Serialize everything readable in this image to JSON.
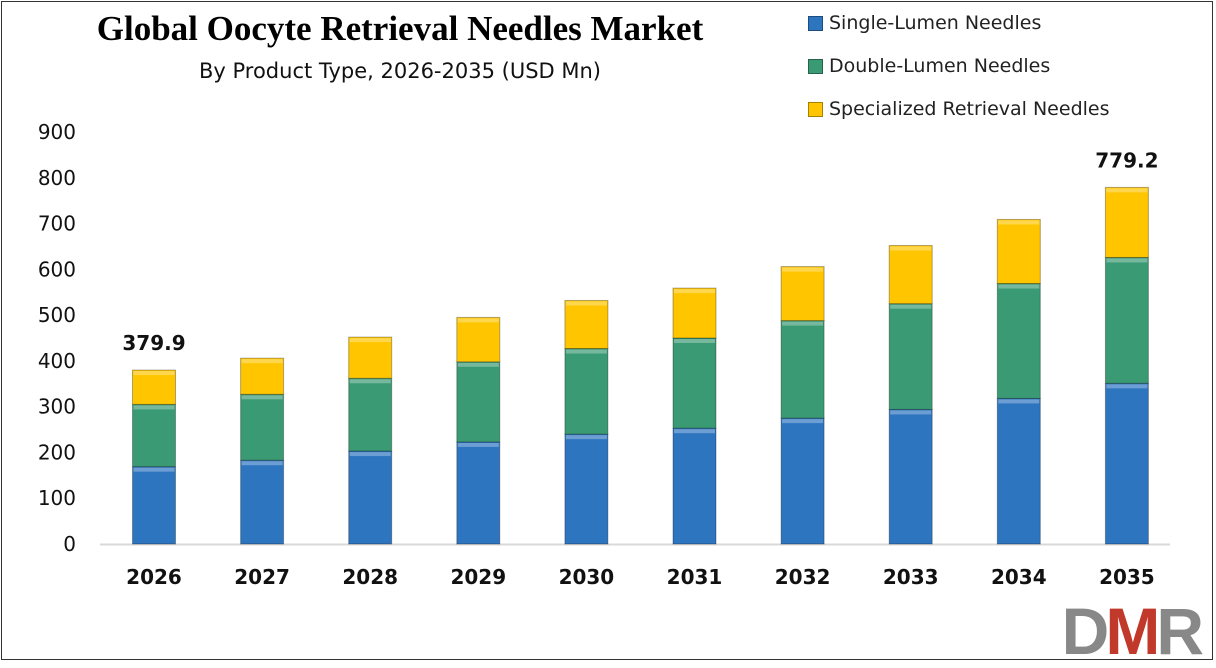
{
  "chart_data": {
    "type": "bar",
    "stacked": true,
    "title": "Global Oocyte Retrieval Needles Market",
    "subtitle": "By Product Type, 2026-2035 (USD Mn)",
    "categories": [
      "2026",
      "2027",
      "2028",
      "2029",
      "2030",
      "2031",
      "2032",
      "2033",
      "2034",
      "2035"
    ],
    "series": [
      {
        "name": "Single-Lumen Needles",
        "color": "#2e75c0",
        "values": [
          169,
          183,
          203,
          223,
          240,
          253,
          275,
          294,
          318,
          351
        ]
      },
      {
        "name": "Double-Lumen Needles",
        "color": "#3a9a74",
        "values": [
          136,
          144,
          159,
          175,
          187,
          197,
          213,
          231,
          251,
          275
        ]
      },
      {
        "name": "Specialized Retrieval Needles",
        "color": "#ffc600",
        "values": [
          75,
          79,
          90,
          97,
          105,
          109,
          118,
          127,
          140,
          153
        ]
      }
    ],
    "data_labels": [
      {
        "category": "2026",
        "text": "379.9"
      },
      {
        "category": "2035",
        "text": "779.2"
      }
    ],
    "yticks": [
      "0",
      "100",
      "200",
      "300",
      "400",
      "500",
      "600",
      "700",
      "800",
      "900"
    ],
    "ylim": [
      0,
      900
    ],
    "grid": false,
    "legend": "top-right"
  },
  "logo": {
    "text": "DMR",
    "colors": [
      "#888888",
      "#c0392b"
    ]
  }
}
